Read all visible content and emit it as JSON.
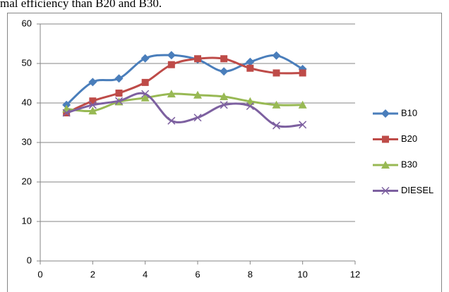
{
  "caption": "mal efficiency than B20 and B30.",
  "chart_data": {
    "type": "line",
    "smooth": true,
    "grid": true,
    "x": [
      1,
      2,
      3,
      4,
      5,
      6,
      7,
      8,
      9,
      10
    ],
    "xlim": [
      0,
      12
    ],
    "xticks": [
      0,
      2,
      4,
      6,
      8,
      10,
      12
    ],
    "ylim": [
      0,
      60
    ],
    "yticks": [
      0,
      10,
      20,
      30,
      40,
      50,
      60
    ],
    "legend": "right",
    "series": [
      {
        "name": "B10",
        "color": "#4a7ebb",
        "marker": "diamond",
        "values": [
          39.5,
          45.3,
          46.2,
          51.3,
          52.1,
          51.0,
          48.0,
          50.4,
          52.0,
          48.6
        ]
      },
      {
        "name": "B20",
        "color": "#be4b48",
        "marker": "square",
        "values": [
          37.5,
          40.5,
          42.5,
          45.2,
          49.7,
          51.2,
          51.2,
          48.8,
          47.6,
          47.6
        ]
      },
      {
        "name": "B30",
        "color": "#98b954",
        "marker": "triangle",
        "values": [
          38.5,
          38.0,
          40.3,
          41.3,
          42.3,
          42.0,
          41.6,
          40.4,
          39.5,
          39.5
        ]
      },
      {
        "name": "DIESEL",
        "color": "#7d60a0",
        "marker": "x",
        "values": [
          37.5,
          39.5,
          40.5,
          42.3,
          35.5,
          36.3,
          39.5,
          39.2,
          34.3,
          34.5
        ]
      }
    ]
  }
}
